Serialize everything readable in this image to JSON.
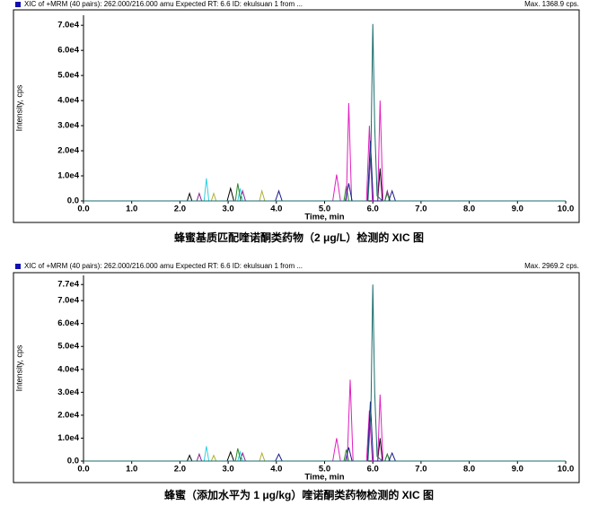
{
  "chart_data": [
    {
      "type": "line",
      "header": "XIC of +MRM (40 pairs): 262.000/216.000 amu Expected RT: 6.6 ID: ekulsuan 1 from ...",
      "max_label": "Max. 1368.9 cps.",
      "y_label": "Intensity, cps",
      "x_label": "Time, min",
      "caption": "蜂蜜基质匹配喹诺酮类药物（2 μg/L）检测的 XIC 图",
      "xlim": [
        0,
        10
      ],
      "ylim": [
        0,
        74000
      ],
      "xticks": [
        {
          "value": 0,
          "label": "0.0"
        },
        {
          "value": 1,
          "label": "1.0"
        },
        {
          "value": 2,
          "label": "2.0"
        },
        {
          "value": 3,
          "label": "3.0"
        },
        {
          "value": 4,
          "label": "4.0"
        },
        {
          "value": 5,
          "label": "5.0"
        },
        {
          "value": 6,
          "label": "6.0"
        },
        {
          "value": 7,
          "label": "7.0"
        },
        {
          "value": 8,
          "label": "8.0"
        },
        {
          "value": 9,
          "label": "9.0"
        },
        {
          "value": 10,
          "label": "10.0"
        }
      ],
      "yticks": [
        {
          "value": 0,
          "label": "0.0"
        },
        {
          "value": 10000,
          "label": "1.0e4"
        },
        {
          "value": 20000,
          "label": "2.0e4"
        },
        {
          "value": 30000,
          "label": "3.0e4"
        },
        {
          "value": 40000,
          "label": "4.0e4"
        },
        {
          "value": 50000,
          "label": "5.0e4"
        },
        {
          "value": 60000,
          "label": "6.0e4"
        },
        {
          "value": 70000,
          "label": "7.0e4"
        }
      ],
      "series": [
        {
          "color": "#8a2090",
          "x": [
            0,
            2.35,
            2.4,
            2.45,
            3.25,
            3.3,
            3.36,
            6.25,
            6.3,
            6.36,
            10
          ],
          "values": [
            0,
            0,
            3000,
            0,
            0,
            4000,
            0,
            0,
            4000,
            0,
            0
          ]
        },
        {
          "color": "#b0b030",
          "x": [
            0,
            2.65,
            2.7,
            2.75,
            3.65,
            3.7,
            3.76,
            10
          ],
          "values": [
            0,
            0,
            3000,
            0,
            0,
            4000,
            0,
            0
          ]
        },
        {
          "color": "#30d0e0",
          "x": [
            0,
            2.5,
            2.55,
            2.6,
            3.2,
            3.25,
            3.3,
            10
          ],
          "values": [
            0,
            0,
            9000,
            0,
            0,
            5000,
            0,
            0
          ]
        },
        {
          "color": "#2a8a2a",
          "x": [
            0,
            3.15,
            3.2,
            3.26,
            5.4,
            5.45,
            5.5,
            6.25,
            6.3,
            6.35,
            10
          ],
          "values": [
            0,
            0,
            7000,
            0,
            0,
            6000,
            0,
            0,
            3000,
            0,
            0
          ]
        },
        {
          "color": "#000000",
          "x": [
            0,
            2.15,
            2.2,
            2.25,
            2.98,
            3.05,
            3.12,
            6.1,
            6.15,
            6.2,
            10
          ],
          "values": [
            0,
            0,
            3000,
            0,
            0,
            5000,
            0,
            0,
            13000,
            0,
            0
          ]
        },
        {
          "color": "#e020c0",
          "x": [
            0,
            5.17,
            5.25,
            5.33,
            5.45,
            5.5,
            5.56,
            5.87,
            5.93,
            5.99,
            6.1,
            6.15,
            6.21,
            10
          ],
          "values": [
            0,
            0,
            10500,
            0,
            0,
            39000,
            0,
            0,
            30000,
            0,
            0,
            40000,
            0,
            0
          ]
        },
        {
          "color": "#1a1a8c",
          "x": [
            0,
            3.98,
            4.05,
            4.12,
            5.43,
            5.5,
            5.57,
            5.89,
            5.95,
            6.01,
            6.33,
            6.4,
            6.47,
            10
          ],
          "values": [
            0,
            0,
            4000,
            0,
            0,
            7000,
            0,
            0,
            24000,
            0,
            0,
            4000,
            0,
            0
          ]
        },
        {
          "color": "#1a6b6b",
          "x": [
            0,
            5.9,
            5.96,
            6.0,
            6.04,
            6.09,
            6.2,
            10
          ],
          "values": [
            0,
            0,
            20000,
            70500,
            30000,
            2000,
            0,
            0
          ]
        }
      ]
    },
    {
      "type": "line",
      "header": "XIC of +MRM (40 pairs): 262.000/216.000 amu Expected RT: 6.6 ID: ekulsuan 1 from ...",
      "max_label": "Max. 2969.2 cps.",
      "y_label": "Intensity, cps",
      "x_label": "Time, min",
      "caption": "蜂蜜（添加水平为 1 μg/kg）喹诺酮类药物检测的 XIC 图",
      "xlim": [
        0,
        10
      ],
      "ylim": [
        0,
        81000
      ],
      "xticks": [
        {
          "value": 0,
          "label": "0.0"
        },
        {
          "value": 1,
          "label": "1.0"
        },
        {
          "value": 2,
          "label": "2.0"
        },
        {
          "value": 3,
          "label": "3.0"
        },
        {
          "value": 4,
          "label": "4.0"
        },
        {
          "value": 5,
          "label": "5.0"
        },
        {
          "value": 6,
          "label": "6.0"
        },
        {
          "value": 7,
          "label": "7.0"
        },
        {
          "value": 8,
          "label": "8.0"
        },
        {
          "value": 9,
          "label": "9.0"
        },
        {
          "value": 10,
          "label": "10.0"
        }
      ],
      "yticks": [
        {
          "value": 0,
          "label": "0.0"
        },
        {
          "value": 10000,
          "label": "1.0e4"
        },
        {
          "value": 20000,
          "label": "2.0e4"
        },
        {
          "value": 30000,
          "label": "3.0e4"
        },
        {
          "value": 40000,
          "label": "4.0e4"
        },
        {
          "value": 50000,
          "label": "5.0e4"
        },
        {
          "value": 60000,
          "label": "6.0e4"
        },
        {
          "value": 70000,
          "label": "7.0e4"
        },
        {
          "value": 77000,
          "label": "7.7e4"
        }
      ],
      "series": [
        {
          "color": "#8a2090",
          "x": [
            0,
            2.35,
            2.4,
            2.45,
            3.25,
            3.3,
            3.36,
            6.25,
            6.3,
            6.36,
            10
          ],
          "values": [
            0,
            0,
            3000,
            0,
            0,
            3500,
            0,
            0,
            3000,
            0,
            0
          ]
        },
        {
          "color": "#b0b030",
          "x": [
            0,
            2.65,
            2.7,
            2.75,
            3.65,
            3.7,
            3.76,
            10
          ],
          "values": [
            0,
            0,
            2500,
            0,
            0,
            3500,
            0,
            0
          ]
        },
        {
          "color": "#30d0e0",
          "x": [
            0,
            2.5,
            2.55,
            2.6,
            3.2,
            3.25,
            3.3,
            10
          ],
          "values": [
            0,
            0,
            6500,
            0,
            0,
            4000,
            0,
            0
          ]
        },
        {
          "color": "#2a8a2a",
          "x": [
            0,
            3.15,
            3.2,
            3.26,
            5.4,
            5.45,
            5.5,
            6.25,
            6.3,
            6.35,
            10
          ],
          "values": [
            0,
            0,
            5500,
            0,
            0,
            5000,
            0,
            0,
            3000,
            0,
            0
          ]
        },
        {
          "color": "#000000",
          "x": [
            0,
            2.15,
            2.2,
            2.25,
            2.98,
            3.05,
            3.12,
            6.1,
            6.15,
            6.2,
            10
          ],
          "values": [
            0,
            0,
            2500,
            0,
            0,
            4000,
            0,
            0,
            10000,
            0,
            0
          ]
        },
        {
          "color": "#e020c0",
          "x": [
            0,
            5.17,
            5.25,
            5.33,
            5.47,
            5.53,
            5.59,
            5.87,
            5.93,
            5.99,
            6.1,
            6.15,
            6.21,
            10
          ],
          "values": [
            0,
            0,
            10000,
            0,
            0,
            35500,
            0,
            0,
            22000,
            0,
            0,
            29000,
            0,
            0
          ]
        },
        {
          "color": "#1a1a8c",
          "x": [
            0,
            3.98,
            4.05,
            4.12,
            5.43,
            5.5,
            5.57,
            5.89,
            5.95,
            6.01,
            6.33,
            6.4,
            6.47,
            10
          ],
          "values": [
            0,
            0,
            3000,
            0,
            0,
            6000,
            0,
            0,
            26000,
            0,
            0,
            3500,
            0,
            0
          ]
        },
        {
          "color": "#1a6b6b",
          "x": [
            0,
            5.9,
            5.96,
            6.0,
            6.04,
            6.09,
            6.2,
            10
          ],
          "values": [
            0,
            0,
            22000,
            77000,
            30000,
            2000,
            0,
            0
          ]
        }
      ]
    }
  ]
}
